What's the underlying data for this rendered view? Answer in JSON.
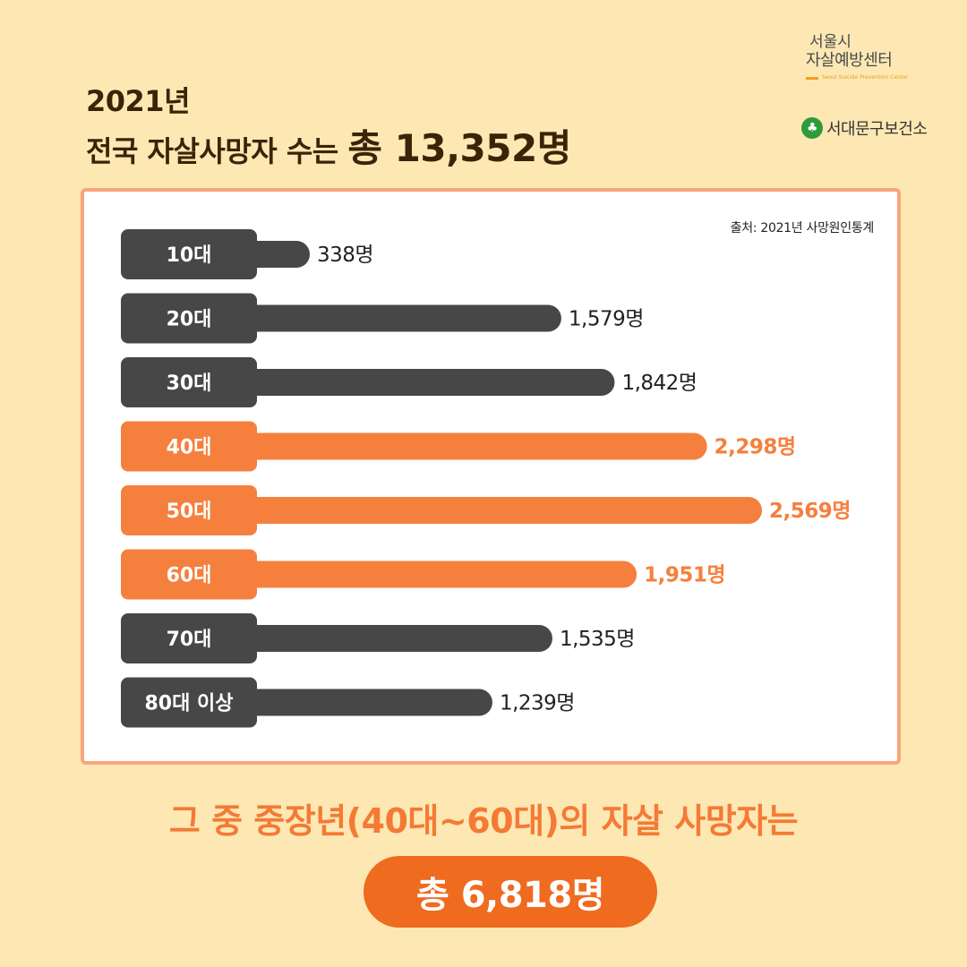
{
  "header": {
    "year_line": "2021년",
    "summary_prefix": "전국 자살사망자 수는 ",
    "summary_total": "총 13,352명"
  },
  "logos": {
    "center_line1": "서울시",
    "center_line2": "자살예방센터",
    "center_sub": "Seoul Suicide Prevention Center",
    "health_center": "서대문구보건소",
    "health_mark_icon": "leaf-logo-icon"
  },
  "chart_data": {
    "type": "bar",
    "orientation": "horizontal",
    "source": "출처: 2021년 사망원인통계",
    "categories": [
      "10대",
      "20대",
      "30대",
      "40대",
      "50대",
      "60대",
      "70대",
      "80대 이상"
    ],
    "values": [
      338,
      1579,
      1842,
      2298,
      2569,
      1951,
      1535,
      1239
    ],
    "value_labels": [
      "338명",
      "1,579명",
      "1,842명",
      "2,298명",
      "2,569명",
      "1,951명",
      "1,535명",
      "1,239명"
    ],
    "highlighted": [
      false,
      false,
      false,
      true,
      true,
      true,
      false,
      false
    ],
    "colors": {
      "default": "#474747",
      "highlight": "#f5803e"
    },
    "xlim": [
      0,
      2569
    ],
    "grid": false
  },
  "footer": {
    "headline": "그 중 중장년(40대~60대)의 자살 사망자는",
    "total_label": "총 6,818명"
  }
}
